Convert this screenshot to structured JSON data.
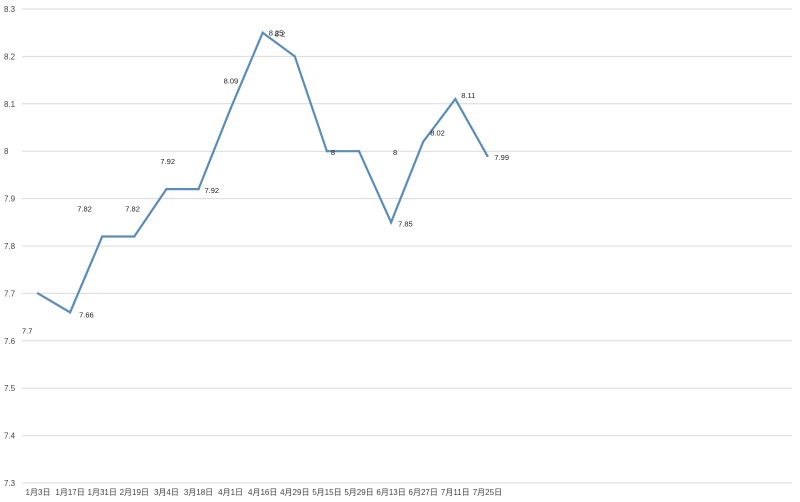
{
  "chart_data": {
    "type": "line",
    "title": "",
    "xlabel": "",
    "ylabel": "",
    "ylim": [
      7.3,
      8.3
    ],
    "yticks": [
      7.3,
      7.4,
      7.5,
      7.6,
      7.7,
      7.8,
      7.9,
      8,
      8.1,
      8.2,
      8.3
    ],
    "ytick_labels": [
      "7.3",
      "7.4",
      "7.5",
      "7.6",
      "7.7",
      "7.8",
      "7.9",
      "8",
      "8.1",
      "8.2",
      "8.3"
    ],
    "grid": true,
    "legend": "none",
    "categories": [
      "1月3日",
      "1月17日",
      "1月31日",
      "2月19日",
      "3月4日",
      "3月18日",
      "4月1日",
      "4月16日",
      "4月29日",
      "5月15日",
      "5月29日",
      "6月13日",
      "6月27日",
      "7月11日",
      "7月25日"
    ],
    "series": [
      {
        "values": [
          7.7,
          7.66,
          7.82,
          7.82,
          7.92,
          7.92,
          8.09,
          8.25,
          8.2,
          8,
          8,
          7.85,
          8.02,
          8.11,
          7.99
        ],
        "labels": [
          "7.7",
          "7.66",
          "7.82",
          "7.82",
          "7.92",
          "7.92",
          "8.09",
          "8.25",
          "8.2",
          "8",
          "8",
          "7.85",
          "8.02",
          "8.11",
          "7.99"
        ],
        "color": "#5b8db8"
      }
    ]
  }
}
